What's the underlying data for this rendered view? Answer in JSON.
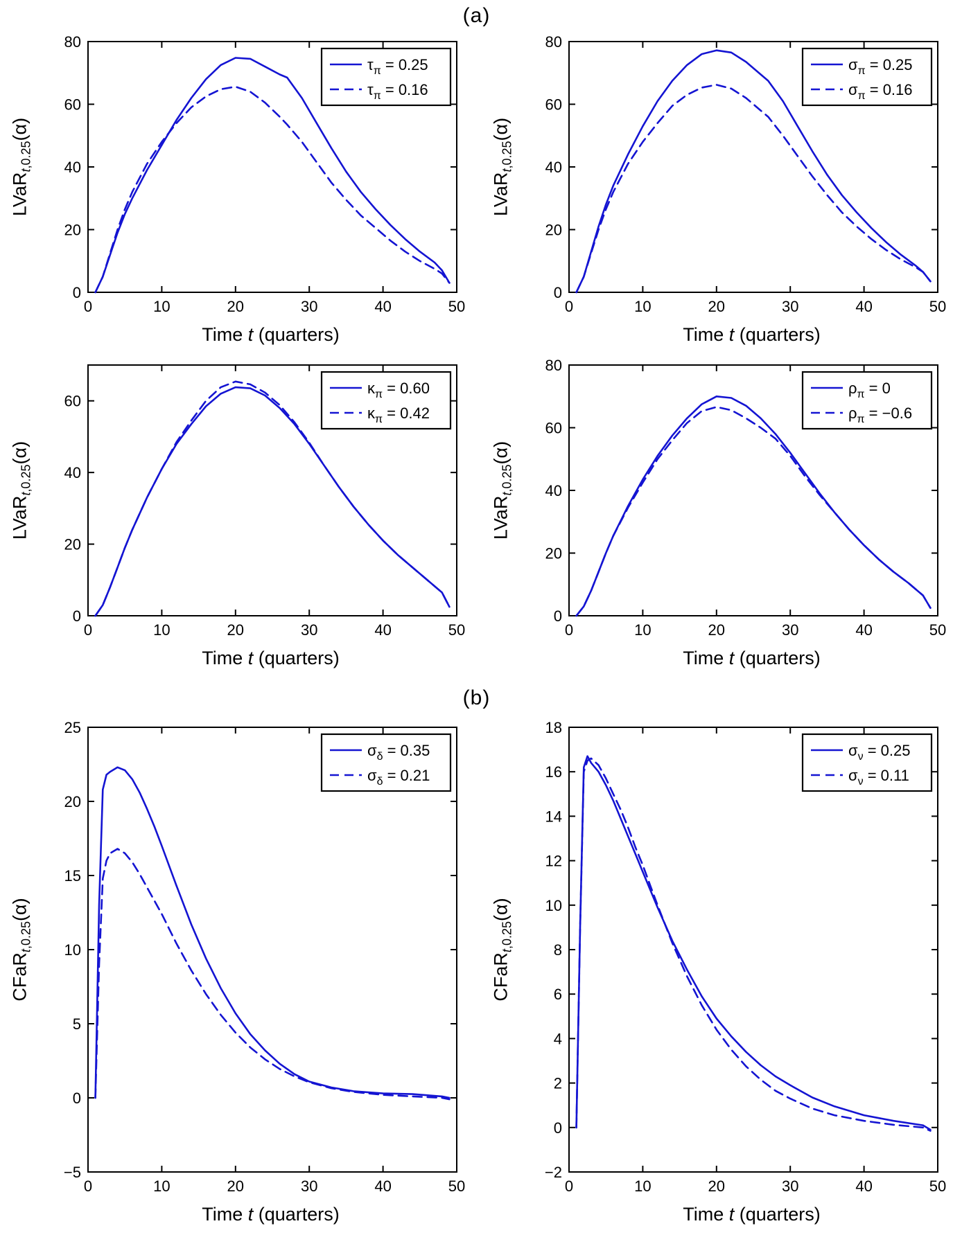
{
  "colors": {
    "line": "#1414d2",
    "axis": "#000000",
    "text": "#000000",
    "legend_bg": "#ffffff",
    "background": "#ffffff"
  },
  "section_labels": {
    "a": "(a)",
    "b": "(b)"
  },
  "xlabel_parts": [
    {
      "text": "Time ",
      "italic": false
    },
    {
      "text": "t",
      "italic": true
    },
    {
      "text": " (quarters)",
      "italic": false
    }
  ],
  "ylabels": {
    "lvar": {
      "pre": "LVaR",
      "sub_it": "t",
      "sub_rest": ",0.25",
      "post": "(α)"
    },
    "cfar": {
      "pre": "CFaR",
      "sub_it": "t",
      "sub_rest": ",0.25",
      "post": "(α)"
    }
  },
  "chart_data": [
    {
      "id": "lvar-tau-pi",
      "type": "line",
      "panel": "a",
      "ylabel": "lvar",
      "xlabel": "Time t (quarters)",
      "xlim": [
        0,
        50
      ],
      "xticks": [
        0,
        10,
        20,
        30,
        40,
        50
      ],
      "ylim": [
        0,
        80
      ],
      "yticks": [
        0,
        20,
        40,
        60,
        80
      ],
      "grid": false,
      "legend_position": "top-right",
      "series": [
        {
          "name": "τπ = 0.25",
          "label": {
            "sym": "τ",
            "sub": "π",
            "rhs": " = 0.25"
          },
          "style": "solid",
          "x": [
            1,
            2,
            3,
            4,
            5,
            6,
            8,
            10,
            12,
            14,
            16,
            18,
            20,
            22,
            24,
            26,
            27,
            29,
            31,
            33,
            35,
            37,
            39,
            41,
            43,
            45,
            47,
            48,
            49
          ],
          "y": [
            0,
            5,
            12,
            19,
            25,
            30,
            39,
            47,
            55,
            62,
            68,
            72.5,
            74.8,
            74.5,
            72,
            69.5,
            68.5,
            62,
            54,
            46,
            38.5,
            32,
            26.5,
            21.5,
            17,
            13,
            9.5,
            7,
            3
          ]
        },
        {
          "name": "τπ = 0.16",
          "label": {
            "sym": "τ",
            "sub": "π",
            "rhs": " = 0.16"
          },
          "style": "dashed",
          "x": [
            1,
            2,
            3,
            4,
            5,
            6,
            8,
            10,
            12,
            14,
            16,
            18,
            20,
            22,
            24,
            26,
            27,
            29,
            31,
            33,
            35,
            37,
            39,
            41,
            43,
            45,
            47,
            48,
            49
          ],
          "y": [
            0,
            5,
            12.5,
            20,
            26.5,
            32,
            41,
            48,
            54,
            59,
            62.5,
            64.8,
            65.6,
            64,
            60.5,
            56,
            53.5,
            48,
            41.5,
            35,
            29.5,
            24.5,
            20.5,
            16.5,
            13,
            10,
            7.5,
            6,
            3
          ]
        }
      ]
    },
    {
      "id": "lvar-sigma-pi",
      "type": "line",
      "panel": "a",
      "ylabel": "lvar",
      "xlabel": "Time t (quarters)",
      "xlim": [
        0,
        50
      ],
      "xticks": [
        0,
        10,
        20,
        30,
        40,
        50
      ],
      "ylim": [
        0,
        80
      ],
      "yticks": [
        0,
        20,
        40,
        60,
        80
      ],
      "grid": false,
      "legend_position": "top-right",
      "series": [
        {
          "name": "σπ = 0.25",
          "label": {
            "sym": "σ",
            "sub": "π",
            "rhs": " = 0.25"
          },
          "style": "solid",
          "x": [
            1,
            2,
            3,
            4,
            5,
            6,
            8,
            10,
            12,
            14,
            16,
            18,
            20,
            22,
            24,
            26,
            27,
            29,
            31,
            33,
            35,
            37,
            39,
            41,
            43,
            45,
            47,
            48,
            49
          ],
          "y": [
            0,
            5,
            13,
            21,
            28,
            34,
            44,
            53,
            61,
            67.5,
            72.5,
            76,
            77.2,
            76.5,
            73.5,
            69.5,
            67.5,
            61,
            53,
            45,
            37.5,
            31,
            25.5,
            20.5,
            16,
            12,
            8.5,
            6.5,
            3.5
          ]
        },
        {
          "name": "σπ = 0.16",
          "label": {
            "sym": "σ",
            "sub": "π",
            "rhs": " = 0.16"
          },
          "style": "dashed",
          "x": [
            1,
            2,
            3,
            4,
            5,
            6,
            8,
            10,
            12,
            14,
            16,
            18,
            20,
            22,
            24,
            26,
            27,
            29,
            31,
            33,
            35,
            37,
            39,
            41,
            43,
            45,
            47,
            48,
            49
          ],
          "y": [
            0,
            5,
            12.5,
            20,
            26.5,
            32,
            41,
            48,
            54,
            59.5,
            63,
            65.3,
            66.2,
            65,
            62,
            58,
            56,
            50,
            43.5,
            37,
            31,
            25.5,
            21,
            17,
            13.5,
            10.5,
            8,
            6.5,
            3.5
          ]
        }
      ]
    },
    {
      "id": "lvar-kappa-pi",
      "type": "line",
      "panel": "a",
      "ylabel": "lvar",
      "xlabel": "Time t (quarters)",
      "xlim": [
        0,
        50
      ],
      "xticks": [
        0,
        10,
        20,
        30,
        40,
        50
      ],
      "ylim": [
        0,
        70
      ],
      "yticks": [
        0,
        20,
        40,
        60
      ],
      "grid": false,
      "legend_position": "top-right",
      "series": [
        {
          "name": "κπ = 0.60",
          "label": {
            "sym": "κ",
            "sub": "π",
            "rhs": " = 0.60"
          },
          "style": "solid",
          "x": [
            1,
            2,
            3,
            4,
            5,
            6,
            8,
            10,
            12,
            14,
            16,
            18,
            20,
            22,
            24,
            26,
            28,
            30,
            32,
            34,
            36,
            38,
            40,
            42,
            44,
            46,
            48,
            49
          ],
          "y": [
            0,
            3,
            8,
            13.5,
            19,
            24,
            33,
            41,
            48,
            53.5,
            58.5,
            62,
            63.8,
            63.5,
            61.5,
            58,
            53.5,
            48,
            42,
            36,
            30.5,
            25.5,
            21,
            17,
            13.5,
            10,
            6.5,
            2.5
          ]
        },
        {
          "name": "κπ = 0.42",
          "label": {
            "sym": "κ",
            "sub": "π",
            "rhs": " = 0.42"
          },
          "style": "dashed",
          "x": [
            1,
            2,
            3,
            4,
            5,
            6,
            8,
            10,
            12,
            14,
            16,
            18,
            20,
            22,
            24,
            26,
            28,
            30,
            32,
            34,
            36,
            38,
            40,
            42,
            44,
            46,
            48,
            49
          ],
          "y": [
            0,
            3,
            8,
            13.5,
            19,
            24,
            33,
            41,
            48.5,
            54.5,
            60,
            63.8,
            65.4,
            64.6,
            62.3,
            58.8,
            54,
            48.3,
            42,
            36,
            30.5,
            25.5,
            21,
            17,
            13.5,
            10,
            6.5,
            2.5
          ]
        }
      ]
    },
    {
      "id": "lvar-rho-pi",
      "type": "line",
      "panel": "a",
      "ylabel": "lvar",
      "xlabel": "Time t (quarters)",
      "xlim": [
        0,
        50
      ],
      "xticks": [
        0,
        10,
        20,
        30,
        40,
        50
      ],
      "ylim": [
        0,
        80
      ],
      "yticks": [
        0,
        20,
        40,
        60,
        80
      ],
      "grid": false,
      "legend_position": "top-right",
      "series": [
        {
          "name": "ρπ = 0",
          "label": {
            "sym": "ρ",
            "sub": "π",
            "rhs": " = 0"
          },
          "style": "solid",
          "x": [
            1,
            2,
            3,
            4,
            5,
            6,
            8,
            10,
            12,
            14,
            16,
            18,
            20,
            22,
            24,
            26,
            28,
            30,
            32,
            34,
            36,
            38,
            40,
            42,
            44,
            46,
            48,
            49
          ],
          "y": [
            0,
            3,
            8,
            14,
            20,
            25.5,
            35,
            43.5,
            51,
            57.5,
            63,
            67.5,
            70,
            69.5,
            67,
            63,
            58,
            52,
            45.5,
            39,
            33,
            27.5,
            22.5,
            18,
            14,
            10.5,
            6.5,
            2.5
          ]
        },
        {
          "name": "ρπ = −0.6",
          "label": {
            "sym": "ρ",
            "sub": "π",
            "rhs": " = −0.6"
          },
          "style": "dashed",
          "x": [
            1,
            2,
            3,
            4,
            5,
            6,
            8,
            10,
            12,
            14,
            16,
            18,
            20,
            22,
            24,
            26,
            28,
            30,
            32,
            34,
            36,
            38,
            40,
            42,
            44,
            46,
            48,
            49
          ],
          "y": [
            0,
            3,
            8,
            14,
            20,
            25.5,
            34.5,
            42.5,
            50,
            56,
            61.5,
            65.3,
            66.6,
            65.6,
            63,
            60,
            56.5,
            51,
            44.5,
            38.5,
            33,
            27.5,
            22.5,
            18,
            14,
            10.5,
            6.5,
            2.5
          ]
        }
      ]
    },
    {
      "id": "cfar-sigma-delta",
      "type": "line",
      "panel": "b",
      "ylabel": "cfar",
      "xlabel": "Time t (quarters)",
      "xlim": [
        0,
        50
      ],
      "xticks": [
        0,
        10,
        20,
        30,
        40,
        50
      ],
      "ylim": [
        -5,
        25
      ],
      "yticks": [
        -5,
        0,
        5,
        10,
        15,
        20,
        25
      ],
      "grid": false,
      "legend_position": "top-right",
      "series": [
        {
          "name": "σδ = 0.35",
          "label": {
            "sym": "σ",
            "sub": "δ",
            "rhs": " = 0.35"
          },
          "style": "solid",
          "x": [
            1,
            1.5,
            2,
            2.5,
            3,
            4,
            5,
            6,
            7,
            8,
            9,
            10,
            12,
            14,
            16,
            18,
            20,
            22,
            24,
            26,
            28,
            30,
            33,
            36,
            40,
            44,
            48,
            49
          ],
          "y": [
            0,
            13,
            20.8,
            21.8,
            22,
            22.3,
            22.1,
            21.5,
            20.6,
            19.5,
            18.3,
            17,
            14.3,
            11.7,
            9.4,
            7.4,
            5.7,
            4.3,
            3.2,
            2.3,
            1.6,
            1.1,
            0.7,
            0.45,
            0.3,
            0.25,
            0.1,
            0
          ]
        },
        {
          "name": "σδ = 0.21",
          "label": {
            "sym": "σ",
            "sub": "δ",
            "rhs": " = 0.21"
          },
          "style": "dashed",
          "x": [
            1,
            1.5,
            2,
            2.5,
            3,
            4,
            5,
            6,
            7,
            8,
            9,
            10,
            12,
            14,
            16,
            18,
            20,
            22,
            24,
            26,
            28,
            30,
            33,
            36,
            40,
            44,
            48,
            49
          ],
          "y": [
            0,
            9,
            14.8,
            16,
            16.5,
            16.8,
            16.5,
            15.9,
            15.1,
            14.2,
            13.3,
            12.4,
            10.4,
            8.6,
            7,
            5.6,
            4.4,
            3.4,
            2.6,
            1.95,
            1.45,
            1.05,
            0.65,
            0.4,
            0.2,
            0.1,
            0,
            -0.1
          ]
        }
      ]
    },
    {
      "id": "cfar-sigma-nu",
      "type": "line",
      "panel": "b",
      "ylabel": "cfar",
      "xlabel": "Time t (quarters)",
      "xlim": [
        0,
        50
      ],
      "xticks": [
        0,
        10,
        20,
        30,
        40,
        50
      ],
      "ylim": [
        -2,
        18
      ],
      "yticks": [
        -2,
        0,
        2,
        4,
        6,
        8,
        10,
        12,
        14,
        16,
        18
      ],
      "grid": false,
      "legend_position": "top-right",
      "series": [
        {
          "name": "σν = 0.25",
          "label": {
            "sym": "σ",
            "sub": "ν",
            "rhs": " = 0.25"
          },
          "style": "solid",
          "x": [
            1,
            1.5,
            2,
            2.5,
            3,
            4,
            5,
            6,
            7,
            8,
            9,
            10,
            11,
            12,
            14,
            16,
            18,
            20,
            22,
            24,
            26,
            28,
            30,
            33,
            36,
            40,
            44,
            48,
            49
          ],
          "y": [
            0,
            9,
            16.2,
            16.7,
            16.4,
            16,
            15.4,
            14.7,
            13.9,
            13.1,
            12.3,
            11.5,
            10.7,
            9.9,
            8.4,
            7.1,
            5.9,
            4.9,
            4.1,
            3.4,
            2.8,
            2.3,
            1.9,
            1.35,
            0.95,
            0.55,
            0.3,
            0.1,
            -0.1
          ]
        },
        {
          "name": "σν = 0.11",
          "label": {
            "sym": "σ",
            "sub": "ν",
            "rhs": " = 0.11"
          },
          "style": "dashed",
          "x": [
            1,
            1.5,
            2,
            2.5,
            3,
            4,
            5,
            6,
            7,
            8,
            9,
            10,
            11,
            12,
            14,
            16,
            18,
            20,
            22,
            24,
            26,
            28,
            30,
            33,
            36,
            40,
            44,
            48,
            49
          ],
          "y": [
            0,
            9,
            16,
            16.5,
            16.6,
            16.3,
            15.7,
            15,
            14.3,
            13.5,
            12.6,
            11.8,
            10.9,
            10,
            8.3,
            6.8,
            5.5,
            4.4,
            3.5,
            2.75,
            2.15,
            1.65,
            1.3,
            0.85,
            0.55,
            0.3,
            0.12,
            0,
            -0.15
          ]
        }
      ]
    }
  ]
}
